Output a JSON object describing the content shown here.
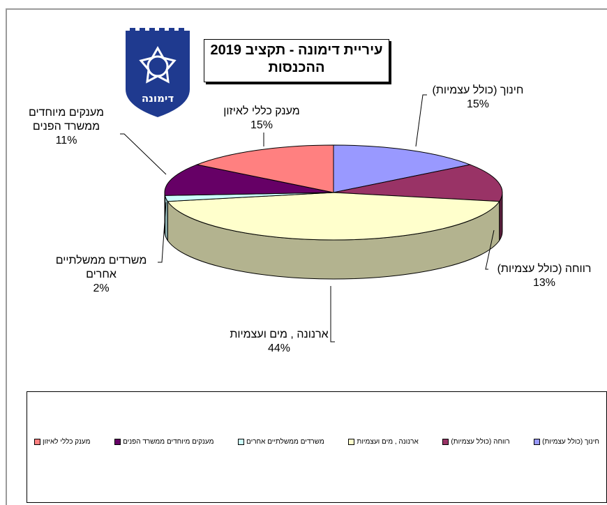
{
  "title": {
    "line1": "עיריית דימונה - תקציב 2019",
    "line2": "ההכנסות"
  },
  "logo": {
    "text": "דימונה"
  },
  "colors": {
    "series": [
      "#9999ff",
      "#993366",
      "#ffffcc",
      "#ccffff",
      "#660066",
      "#ff8080"
    ],
    "sides": [
      "#5c5c99",
      "#5c1f3d",
      "#b3b38f",
      "#8fb3b3",
      "#3d003d",
      "#994d4d"
    ]
  },
  "labels": [
    {
      "line1": "חינוך (כולל עצמיות)",
      "line2": "",
      "pct": "15%"
    },
    {
      "line1": "רווחה (כולל עצמיות)",
      "line2": "",
      "pct": "13%"
    },
    {
      "line1": "ארנונה , מים ועצמיות",
      "line2": "",
      "pct": "44%"
    },
    {
      "line1": "משרדים ממשלתיים",
      "line2": "אחרים",
      "pct": "2%"
    },
    {
      "line1": "מענקים מיוחדים",
      "line2": "ממשרד הפנים",
      "pct": "11%"
    },
    {
      "line1": "מענק כללי לאיזון",
      "line2": "",
      "pct": "15%"
    }
  ],
  "chart_data": {
    "type": "pie",
    "title": "עיריית דימונה - תקציב 2019 ההכנסות",
    "categories": [
      "חינוך (כולל עצמיות)",
      "רווחה (כולל עצמיות)",
      "ארנונה , מים ועצמיות",
      "משרדים ממשלתיים אחרים",
      "מענקים מיוחדים ממשרד הפנים",
      "מענק כללי לאיזון"
    ],
    "values": [
      15,
      13,
      44,
      2,
      11,
      15
    ],
    "legend_position": "bottom",
    "style": "3d"
  },
  "legend": [
    {
      "label": "חינוך (כולל עצמיות)"
    },
    {
      "label": "רווחה (כולל עצמיות)"
    },
    {
      "label": "ארנונה , מים ועצמיות"
    },
    {
      "label": "משרדים ממשלתיים אחרים"
    },
    {
      "label": "מענקים מיוחדים ממשרד הפנים"
    },
    {
      "label": "מענק כללי לאיזון"
    }
  ]
}
